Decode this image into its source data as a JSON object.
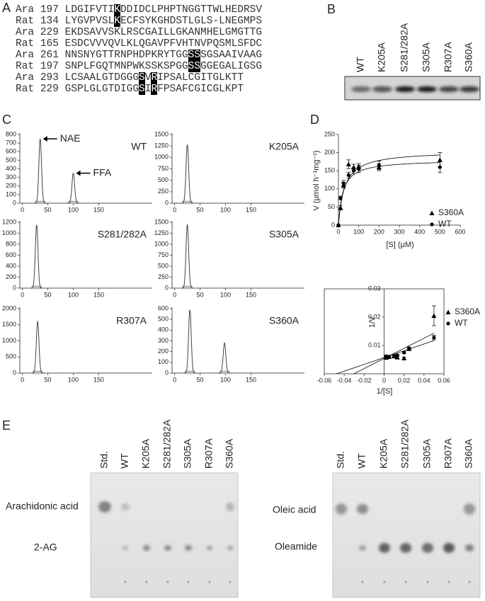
{
  "panel_labels": [
    "A",
    "B",
    "C",
    "D",
    "E"
  ],
  "panel_a": {
    "rows": [
      {
        "species": "Ara",
        "start": 197,
        "sequence": [
          {
            "text": "LDGIFVTI"
          },
          {
            "text": "K",
            "highlight": true
          },
          {
            "text": "DDIDCLPHPTNGGTTWLHEDRSV"
          }
        ]
      },
      {
        "species": "Rat",
        "start": 134,
        "sequence": [
          {
            "text": "LYGVPVSL"
          },
          {
            "text": "K",
            "highlight": true
          },
          {
            "text": "ECFSYKGHDSTLGLS-LNEGMPS"
          }
        ]
      },
      {
        "species": "Ara",
        "start": 229,
        "sequence": [
          {
            "text": "EKDSAVVSKLRSCGAILLGKANMHELGMGTTG"
          }
        ]
      },
      {
        "species": "Rat",
        "start": 165,
        "sequence": [
          {
            "text": "ESDCVVVQVLKLQGAVPFVHTNVPQSMLSFDC"
          }
        ]
      },
      {
        "species": "Ara",
        "start": 261,
        "sequence": [
          {
            "text": "NNSNYGTTRNPHDPKRYTGG"
          },
          {
            "text": "SS",
            "highlight": true
          },
          {
            "text": "SGSAAIVAAG"
          }
        ]
      },
      {
        "species": "Rat",
        "start": 197,
        "sequence": [
          {
            "text": "SNPLFGQTMNPWKSSKSPGG"
          },
          {
            "text": "SS",
            "highlight": true
          },
          {
            "text": "GGEGALIGSG"
          }
        ]
      },
      {
        "species": "Ara",
        "start": 293,
        "sequence": [
          {
            "text": "LCSAALGTDGGG"
          },
          {
            "text": "S",
            "highlight": true
          },
          {
            "text": "V"
          },
          {
            "text": "R",
            "highlight": true
          },
          {
            "text": "IPSALCGITGLKTT"
          }
        ]
      },
      {
        "species": "Rat",
        "start": 229,
        "sequence": [
          {
            "text": "GSPLGLGTDIGG"
          },
          {
            "text": "S",
            "highlight": true
          },
          {
            "text": "I"
          },
          {
            "text": "R",
            "highlight": true
          },
          {
            "text": "FPSAFCGICGLKPT"
          }
        ]
      }
    ]
  },
  "panel_b": {
    "lanes": [
      "WT",
      "K205A",
      "S281/282A",
      "S305A",
      "R307A",
      "S360A"
    ]
  },
  "chart_data": [
    {
      "type": "chromatogram",
      "label": "WT",
      "xlim": [
        -5,
        255
      ],
      "ylim": [
        0,
        800
      ],
      "xticks": [
        0,
        50,
        100,
        150
      ],
      "yticks": [
        0,
        100,
        200,
        300,
        400,
        500,
        600,
        700,
        800
      ],
      "x": [
        35,
        100
      ],
      "values": [
        750,
        350
      ],
      "peak_labels": [
        "NAE",
        "FFA"
      ]
    },
    {
      "type": "chromatogram",
      "label": "K205A",
      "xlim": [
        -5,
        255
      ],
      "ylim": [
        0,
        1500
      ],
      "xticks": [
        0,
        50,
        100,
        150
      ],
      "yticks": [
        0,
        250,
        500,
        750,
        1000,
        1250,
        1500
      ],
      "x": [
        25
      ],
      "values": [
        1280
      ]
    },
    {
      "type": "chromatogram",
      "label": "S281/282A",
      "xlim": [
        -5,
        255
      ],
      "ylim": [
        0,
        1200
      ],
      "xticks": [
        0,
        50,
        100,
        150
      ],
      "yticks": [
        0,
        200,
        400,
        600,
        800,
        1000,
        1200
      ],
      "x": [
        28
      ],
      "values": [
        1150
      ]
    },
    {
      "type": "chromatogram",
      "label": "S305A",
      "xlim": [
        -5,
        255
      ],
      "ylim": [
        0,
        1500
      ],
      "xticks": [
        0,
        50,
        100,
        150
      ],
      "yticks": [
        0,
        250,
        500,
        750,
        1000,
        1250,
        1500
      ],
      "x": [
        25
      ],
      "values": [
        1450
      ]
    },
    {
      "type": "chromatogram",
      "label": "R307A",
      "xlim": [
        -5,
        255
      ],
      "ylim": [
        0,
        2000
      ],
      "xticks": [
        0,
        50,
        100,
        150
      ],
      "yticks": [
        0,
        500,
        1000,
        1500,
        2000
      ],
      "x": [
        30
      ],
      "values": [
        1600
      ]
    },
    {
      "type": "chromatogram",
      "label": "S360A",
      "xlim": [
        -5,
        255
      ],
      "ylim": [
        0,
        600
      ],
      "xticks": [
        0,
        50,
        100,
        150
      ],
      "yticks": [
        0,
        100,
        200,
        300,
        400,
        500,
        600
      ],
      "x": [
        30,
        98
      ],
      "values": [
        590,
        280
      ]
    },
    {
      "type": "kinetics",
      "x_label": "[S] (μM)",
      "y_label": "V (μmol h⁻¹mg⁻¹)",
      "xlim": [
        0,
        600
      ],
      "ylim": [
        0,
        250
      ],
      "xticks": [
        0,
        100,
        200,
        300,
        400,
        500,
        600
      ],
      "yticks": [
        0,
        50,
        100,
        150,
        200,
        250
      ],
      "legend": "right",
      "x": [
        0,
        10,
        25,
        50,
        75,
        100,
        200,
        500
      ],
      "series": [
        {
          "name": "S360A",
          "marker": "triangle",
          "color": "#000000",
          "values": [
            0,
            48,
            110,
            168,
            160,
            162,
            160,
            180
          ],
          "errors": [
            0,
            6,
            8,
            12,
            8,
            8,
            10,
            20
          ],
          "vmax": 205,
          "km": 30
        },
        {
          "name": "WT",
          "marker": "circle",
          "color": "#000000",
          "values": [
            0,
            75,
            115,
            138,
            150,
            155,
            165,
            160
          ],
          "errors": [
            0,
            5,
            8,
            8,
            8,
            10,
            12,
            15
          ],
          "vmax": 180,
          "km": 22
        }
      ]
    },
    {
      "type": "reciprocal",
      "x_label": "1/[S]",
      "y_label": "1/V",
      "xlim": [
        -0.06,
        0.06
      ],
      "ylim": [
        0,
        0.03
      ],
      "xticks": [
        -0.06,
        -0.04,
        -0.02,
        0,
        0.02,
        0.04,
        0.06
      ],
      "yticks": [
        0.01,
        0.02,
        0.03
      ],
      "legend": "right",
      "x": [
        0.05,
        0.025,
        0.02,
        0.0133,
        0.01,
        0.005,
        0.002
      ],
      "series": [
        {
          "name": "S360A",
          "marker": "triangle",
          "color": "#000000",
          "values": [
            0.0205,
            0.0088,
            0.0055,
            0.0058,
            0.0062,
            0.006,
            0.0057
          ],
          "errors": [
            0.0035,
            0.0005,
            0.0004,
            0.0004,
            0.0004,
            0.0003,
            0.0003
          ],
          "vmax": 185,
          "km": 33
        },
        {
          "name": "WT",
          "marker": "circle",
          "color": "#000000",
          "values": [
            0.0128,
            0.009,
            0.0075,
            0.0065,
            0.0063,
            0.006,
            0.0062
          ],
          "errors": [
            0.0008,
            0.0004,
            0.0004,
            0.0003,
            0.0003,
            0.0003,
            0.0003
          ],
          "vmax": 175,
          "km": 21
        }
      ]
    }
  ],
  "panel_e": {
    "plates": [
      {
        "lanes": [
          "Std.",
          "WT",
          "K205A",
          "S281/282A",
          "S305A",
          "R307A",
          "S360A"
        ],
        "spots": [
          "Arachidonic acid",
          "2-AG"
        ]
      },
      {
        "lanes": [
          "Std.",
          "WT",
          "K205A",
          "S281/282A",
          "S305A",
          "R307A",
          "S360A"
        ],
        "spots": [
          "Oleic acid",
          "Oleamide"
        ]
      }
    ]
  }
}
